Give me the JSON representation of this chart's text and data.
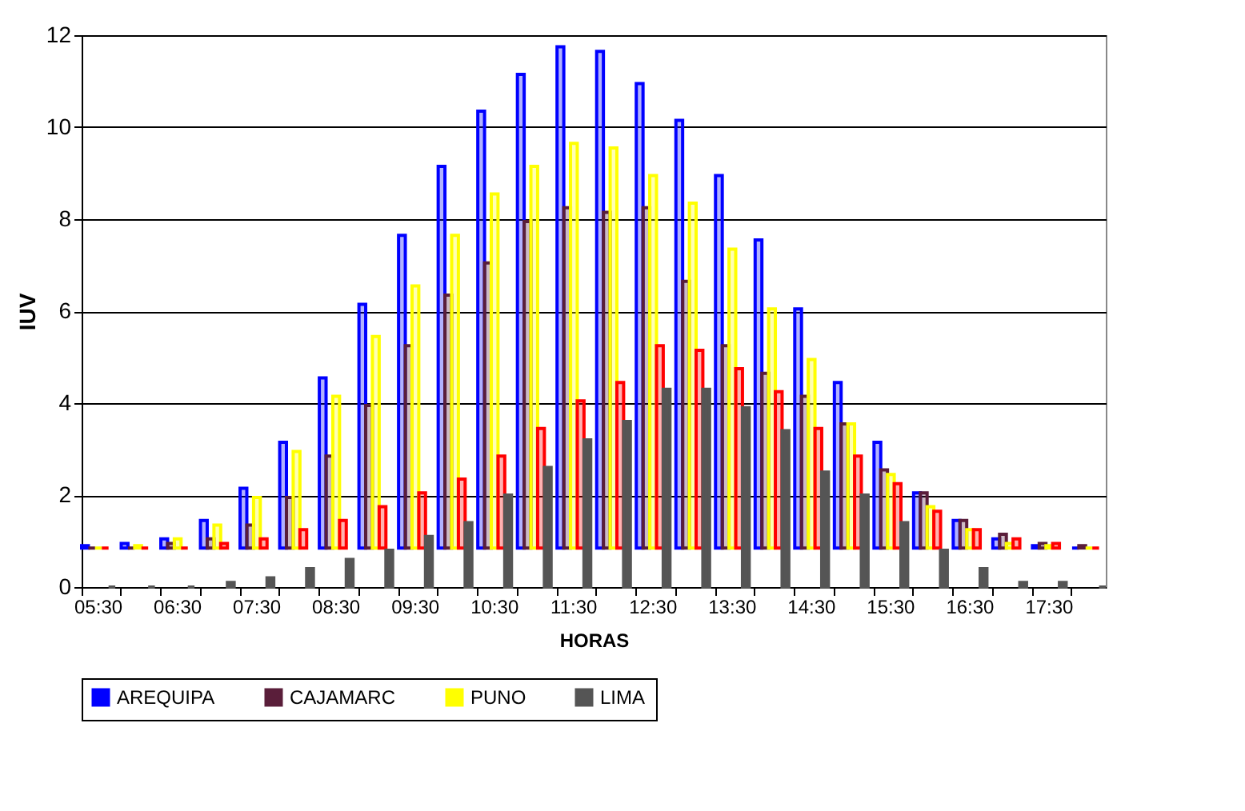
{
  "chart_data": {
    "type": "bar",
    "xlabel": "HORAS",
    "ylabel": "IUV",
    "categories": [
      "05:30",
      null,
      "06:30",
      null,
      "07:30",
      null,
      "08:30",
      null,
      "09:30",
      null,
      "10:30",
      null,
      "11:30",
      null,
      "12:30",
      null,
      "13:30",
      null,
      "14:30",
      null,
      "15:30",
      null,
      "16:30",
      null,
      "17:30",
      null
    ],
    "series": [
      {
        "name": "AREQUIPA",
        "color": "#0000ff",
        "base": [
          0.85,
          0.85,
          0.85,
          0.85,
          0.85,
          0.85,
          0.85,
          0.85,
          0.85,
          0.85,
          0.85,
          0.85,
          0.85,
          0.85,
          0.85,
          0.85,
          0.85,
          0.85,
          0.85,
          0.85,
          0.85,
          0.85,
          0.85,
          0.85,
          0.85,
          0.85
        ],
        "values": [
          0.05,
          0.1,
          0.2,
          0.6,
          1.3,
          2.3,
          3.7,
          5.3,
          6.8,
          8.3,
          9.5,
          10.3,
          10.9,
          10.8,
          10.1,
          9.3,
          8.1,
          6.7,
          5.2,
          3.6,
          2.3,
          1.2,
          0.6,
          0.2,
          0.05,
          0
        ]
      },
      {
        "name": "CAJAMARC",
        "color": "#5a1e3a",
        "base": [
          0.85,
          0.85,
          0.85,
          0.85,
          0.85,
          0.85,
          0.85,
          0.85,
          0.85,
          0.85,
          0.85,
          0.85,
          0.85,
          0.85,
          0.85,
          0.85,
          0.85,
          0.85,
          0.85,
          0.85,
          0.85,
          0.85,
          0.85,
          0.85,
          0.85,
          0.85
        ],
        "values": [
          0,
          0,
          0.1,
          0.2,
          0.5,
          1.1,
          2.0,
          3.1,
          4.4,
          5.5,
          6.2,
          7.1,
          7.4,
          7.3,
          7.4,
          5.8,
          4.4,
          3.8,
          3.3,
          2.7,
          1.7,
          1.2,
          0.6,
          0.3,
          0.1,
          0.05
        ]
      },
      {
        "name": "PUNO",
        "color": "#ffff00",
        "base": [
          0.85,
          0.85,
          0.85,
          0.85,
          0.85,
          0.85,
          0.85,
          0.85,
          0.85,
          0.85,
          0.85,
          0.85,
          0.85,
          0.85,
          0.85,
          0.85,
          0.85,
          0.85,
          0.85,
          0.85,
          0.85,
          0.85,
          0.85,
          0.85,
          0.85,
          0.85
        ],
        "values": [
          0,
          0.05,
          0.2,
          0.5,
          1.1,
          2.1,
          3.3,
          4.6,
          5.7,
          6.8,
          7.7,
          8.3,
          8.8,
          8.7,
          8.1,
          7.5,
          6.5,
          5.2,
          4.1,
          2.7,
          1.6,
          0.9,
          0.4,
          0.1,
          0.05,
          0
        ]
      },
      {
        "color": "#ff0000",
        "base": [
          0.85,
          0.85,
          0.85,
          0.85,
          0.85,
          0.85,
          0.85,
          0.85,
          0.85,
          0.85,
          0.85,
          0.85,
          0.85,
          0.85,
          0.85,
          0.85,
          0.85,
          0.85,
          0.85,
          0.85,
          0.85,
          0.85,
          0.85,
          0.85,
          0.85,
          0.85
        ],
        "values": [
          0,
          0,
          0,
          0.1,
          0.2,
          0.4,
          0.6,
          0.9,
          1.2,
          1.5,
          2.0,
          2.6,
          3.2,
          3.6,
          4.4,
          4.3,
          3.9,
          3.4,
          2.6,
          2.0,
          1.4,
          0.8,
          0.4,
          0.2,
          0.1,
          0
        ]
      },
      {
        "name": "LIMA",
        "color": "#555555",
        "values": [
          0,
          0,
          0,
          0.1,
          0.2,
          0.4,
          0.6,
          0.8,
          1.1,
          1.4,
          2.0,
          2.6,
          3.2,
          3.6,
          4.3,
          4.3,
          3.9,
          3.4,
          2.5,
          2.0,
          1.4,
          0.8,
          0.4,
          0.1,
          0.1,
          0
        ]
      }
    ],
    "ylim": [
      0,
      12
    ],
    "yticks": [
      0,
      2,
      4,
      6,
      8,
      10,
      12
    ],
    "grid": "y",
    "legend": "bottom"
  }
}
